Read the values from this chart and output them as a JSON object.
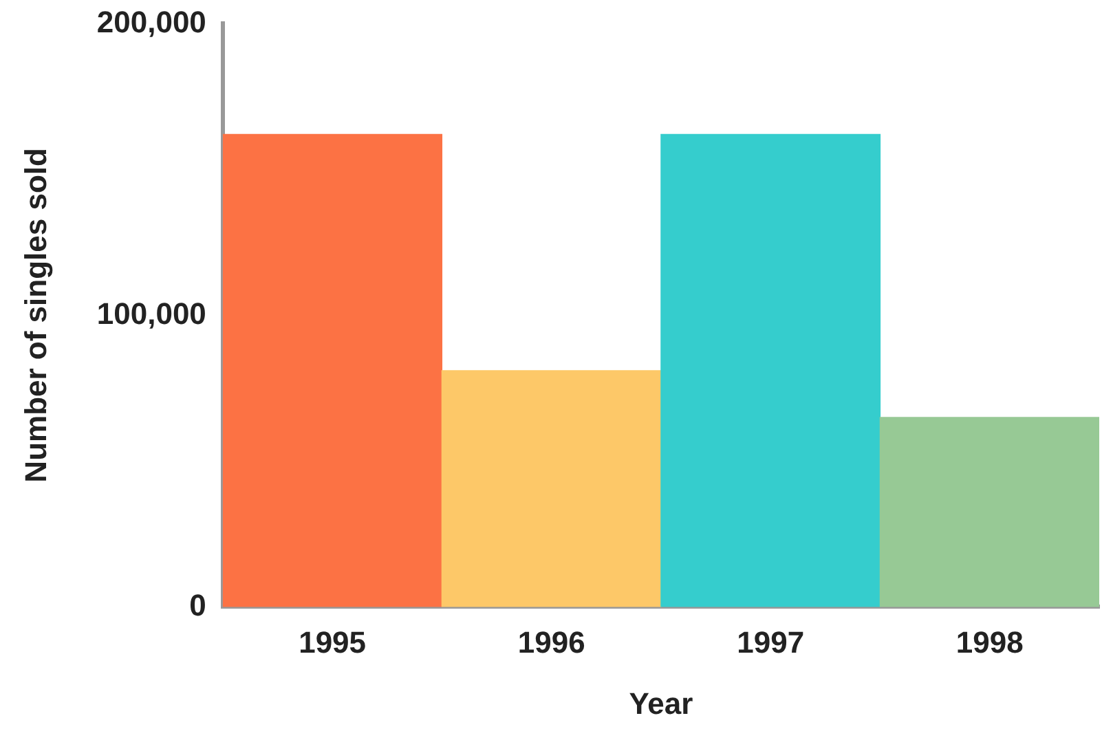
{
  "chart_data": {
    "type": "bar",
    "xlabel": "Year",
    "ylabel": "Number of singles sold",
    "categories": [
      "1995",
      "1996",
      "1997",
      "1998"
    ],
    "values": [
      162000,
      81000,
      162000,
      65000
    ],
    "colors": [
      "#fc7244",
      "#fdc868",
      "#35cdcd",
      "#97c995"
    ],
    "ylim": [
      0,
      200000
    ],
    "yticks": [
      0,
      {
        "value": 100000,
        "label": "100,000"
      },
      {
        "value": 200000,
        "label": "200,000"
      }
    ],
    "grid": false,
    "legend": false
  }
}
